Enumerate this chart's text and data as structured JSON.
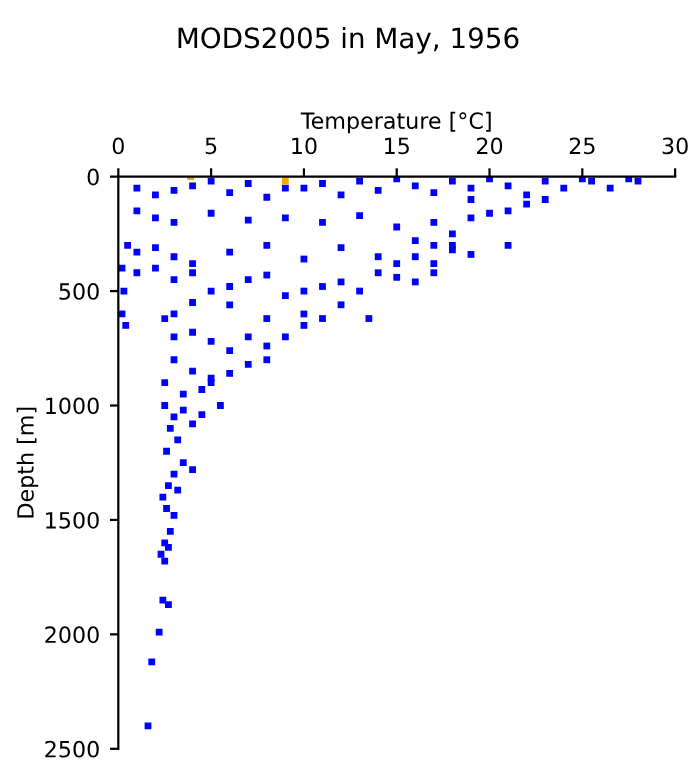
{
  "chart_data": {
    "type": "scatter",
    "title": "MODS2005 in May, 1956",
    "xlabel": "Temperature [°C]",
    "ylabel": "Depth [m]",
    "xlim": [
      0,
      30
    ],
    "xticks": [
      0,
      5,
      10,
      15,
      20,
      25,
      30
    ],
    "ylim": [
      2500,
      0
    ],
    "yticks": [
      0,
      500,
      1000,
      1500,
      2000,
      2500
    ],
    "marker": "square",
    "grid": false,
    "legend": false,
    "series": [
      {
        "color": "#0000ff",
        "x": [
          1,
          2,
          3,
          4,
          5,
          6,
          7,
          8,
          9,
          10,
          11,
          12,
          13,
          14,
          15,
          16,
          17,
          18,
          19,
          20,
          21,
          22,
          23,
          24,
          25,
          25.5,
          26.5,
          27.5,
          28,
          19,
          22,
          23,
          21,
          1,
          2,
          3,
          5,
          7,
          9,
          11,
          13,
          15,
          17,
          18,
          19,
          20,
          16,
          17,
          18,
          0.5,
          1,
          2,
          3,
          4,
          6,
          8,
          10,
          12,
          14,
          15,
          16,
          17,
          18,
          19,
          21,
          0.2,
          0.3,
          0.2,
          0.4,
          1,
          2,
          3,
          4,
          5,
          6,
          7,
          8,
          9,
          10,
          11,
          12,
          13,
          14,
          15,
          16,
          17,
          13.5,
          12,
          10,
          8,
          6,
          4,
          3,
          2.5,
          3,
          4,
          5,
          6,
          7,
          8,
          9,
          10,
          11,
          3,
          4,
          5,
          6,
          7,
          8,
          2.5,
          3.5,
          4.5,
          5,
          2.5,
          3,
          3.5,
          4,
          4.5,
          5.5,
          2.8,
          3.2,
          2.6,
          3.5,
          4,
          3,
          2.7,
          3.2,
          2.4,
          2.6,
          3,
          2.8,
          2.5,
          2.7,
          2.3,
          2.5,
          2.4,
          2.7,
          2.2,
          1.8,
          1.6
        ],
        "values": [
          50,
          80,
          60,
          40,
          20,
          70,
          30,
          90,
          50,
          50,
          30,
          80,
          20,
          60,
          10,
          40,
          70,
          20,
          50,
          10,
          40,
          80,
          20,
          50,
          10,
          20,
          50,
          10,
          20,
          100,
          120,
          100,
          150,
          150,
          180,
          200,
          160,
          190,
          180,
          200,
          170,
          220,
          200,
          250,
          180,
          160,
          280,
          300,
          320,
          300,
          330,
          310,
          350,
          380,
          330,
          300,
          360,
          310,
          350,
          380,
          350,
          380,
          300,
          340,
          300,
          400,
          500,
          600,
          650,
          420,
          400,
          450,
          420,
          500,
          480,
          450,
          430,
          520,
          500,
          480,
          460,
          500,
          420,
          440,
          460,
          420,
          620,
          560,
          600,
          620,
          560,
          550,
          600,
          620,
          700,
          680,
          720,
          760,
          700,
          740,
          700,
          650,
          620,
          800,
          850,
          900,
          860,
          820,
          800,
          900,
          950,
          930,
          880,
          1000,
          1050,
          1020,
          1080,
          1040,
          1000,
          1100,
          1150,
          1200,
          1250,
          1280,
          1300,
          1350,
          1370,
          1400,
          1450,
          1480,
          1550,
          1600,
          1620,
          1650,
          1680,
          1850,
          1870,
          1990,
          2120,
          2400
        ]
      },
      {
        "color": "#ffa500",
        "x": [
          3.9,
          9
        ],
        "values": [
          0,
          20
        ]
      }
    ]
  }
}
